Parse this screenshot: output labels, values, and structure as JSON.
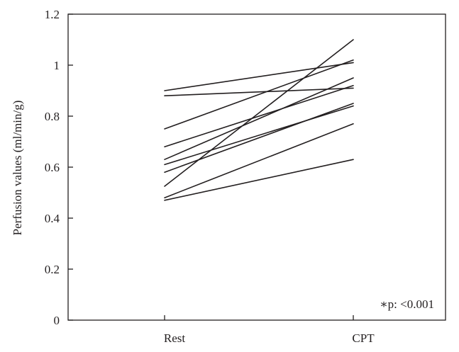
{
  "chart_data": {
    "type": "line",
    "title": "",
    "xlabel": "",
    "ylabel": "Perfusion values (ml/min/g)",
    "categories": [
      "Rest",
      "CPT"
    ],
    "ylim": [
      0,
      1.2
    ],
    "yticks": [
      "0",
      "0.2",
      "0.4",
      "0.6",
      "0.8",
      "1",
      "1.2"
    ],
    "grid": false,
    "legend": "none",
    "line_color": "#231f20",
    "annotation": "∗p: <0.001",
    "series": [
      {
        "values": [
          0.9,
          1.01
        ]
      },
      {
        "values": [
          0.88,
          0.91
        ]
      },
      {
        "values": [
          0.75,
          1.02
        ]
      },
      {
        "values": [
          0.68,
          0.92
        ]
      },
      {
        "values": [
          0.63,
          0.95
        ]
      },
      {
        "values": [
          0.61,
          0.84
        ]
      },
      {
        "values": [
          0.58,
          0.85
        ]
      },
      {
        "values": [
          0.525,
          1.1
        ]
      },
      {
        "values": [
          0.48,
          0.77
        ]
      },
      {
        "values": [
          0.47,
          0.63
        ]
      }
    ]
  }
}
